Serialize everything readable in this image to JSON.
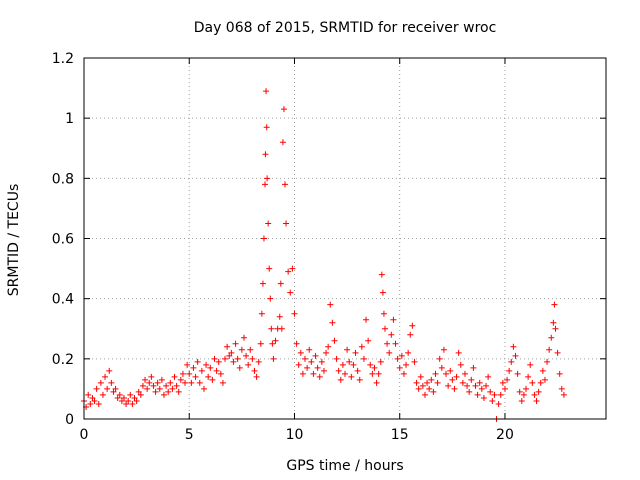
{
  "chart_data": {
    "type": "scatter",
    "title": "Day 068 of 2015, SRMTID for receiver wroc",
    "xlabel": "GPS time / hours",
    "ylabel": "SRMTID / TECUs",
    "xlim": [
      0,
      24.8
    ],
    "ylim": [
      0,
      1.2
    ],
    "x_ticks": [
      0,
      5,
      10,
      15,
      20
    ],
    "y_ticks": [
      0,
      0.2,
      0.4,
      0.6,
      0.8,
      1.0,
      1.2
    ],
    "x_tick_labels": [
      "0",
      "5",
      "10",
      "15",
      "20"
    ],
    "y_tick_labels": [
      "0",
      "0.2",
      "0.4",
      "0.6",
      "0.8",
      "1",
      "1.2"
    ],
    "grid": true,
    "marker": "+",
    "color": "#ff0000",
    "series": [
      {
        "name": "SRMTID",
        "points": [
          [
            0.0,
            0.06
          ],
          [
            0.1,
            0.04
          ],
          [
            0.2,
            0.08
          ],
          [
            0.3,
            0.05
          ],
          [
            0.4,
            0.07
          ],
          [
            0.5,
            0.06
          ],
          [
            0.6,
            0.1
          ],
          [
            0.7,
            0.05
          ],
          [
            0.8,
            0.12
          ],
          [
            0.9,
            0.08
          ],
          [
            1.0,
            0.14
          ],
          [
            1.1,
            0.1
          ],
          [
            1.2,
            0.16
          ],
          [
            1.3,
            0.12
          ],
          [
            1.4,
            0.09
          ],
          [
            1.5,
            0.1
          ],
          [
            1.6,
            0.07
          ],
          [
            1.7,
            0.08
          ],
          [
            1.8,
            0.06
          ],
          [
            1.9,
            0.07
          ],
          [
            2.0,
            0.05
          ],
          [
            2.1,
            0.06
          ],
          [
            2.2,
            0.08
          ],
          [
            2.3,
            0.05
          ],
          [
            2.4,
            0.07
          ],
          [
            2.5,
            0.06
          ],
          [
            2.6,
            0.09
          ],
          [
            2.7,
            0.08
          ],
          [
            2.8,
            0.11
          ],
          [
            2.9,
            0.13
          ],
          [
            3.0,
            0.1
          ],
          [
            3.1,
            0.12
          ],
          [
            3.2,
            0.14
          ],
          [
            3.3,
            0.11
          ],
          [
            3.4,
            0.09
          ],
          [
            3.5,
            0.12
          ],
          [
            3.6,
            0.1
          ],
          [
            3.7,
            0.13
          ],
          [
            3.8,
            0.08
          ],
          [
            3.9,
            0.11
          ],
          [
            4.0,
            0.09
          ],
          [
            4.1,
            0.12
          ],
          [
            4.2,
            0.1
          ],
          [
            4.3,
            0.14
          ],
          [
            4.4,
            0.11
          ],
          [
            4.5,
            0.09
          ],
          [
            4.6,
            0.13
          ],
          [
            4.7,
            0.15
          ],
          [
            4.8,
            0.12
          ],
          [
            4.9,
            0.18
          ],
          [
            5.0,
            0.15
          ],
          [
            5.1,
            0.12
          ],
          [
            5.2,
            0.17
          ],
          [
            5.3,
            0.14
          ],
          [
            5.4,
            0.19
          ],
          [
            5.5,
            0.12
          ],
          [
            5.6,
            0.16
          ],
          [
            5.7,
            0.1
          ],
          [
            5.8,
            0.18
          ],
          [
            5.9,
            0.14
          ],
          [
            6.0,
            0.17
          ],
          [
            6.1,
            0.13
          ],
          [
            6.2,
            0.2
          ],
          [
            6.3,
            0.16
          ],
          [
            6.4,
            0.19
          ],
          [
            6.5,
            0.15
          ],
          [
            6.6,
            0.12
          ],
          [
            6.7,
            0.2
          ],
          [
            6.8,
            0.24
          ],
          [
            6.9,
            0.21
          ],
          [
            7.0,
            0.22
          ],
          [
            7.1,
            0.19
          ],
          [
            7.2,
            0.25
          ],
          [
            7.3,
            0.2
          ],
          [
            7.4,
            0.17
          ],
          [
            7.5,
            0.23
          ],
          [
            7.6,
            0.27
          ],
          [
            7.7,
            0.21
          ],
          [
            7.8,
            0.18
          ],
          [
            7.9,
            0.23
          ],
          [
            8.0,
            0.2
          ],
          [
            8.1,
            0.16
          ],
          [
            8.2,
            0.14
          ],
          [
            8.3,
            0.19
          ],
          [
            8.4,
            0.25
          ],
          [
            8.45,
            0.35
          ],
          [
            8.5,
            0.45
          ],
          [
            8.55,
            0.6
          ],
          [
            8.6,
            0.78
          ],
          [
            8.62,
            0.88
          ],
          [
            8.65,
            1.09
          ],
          [
            8.68,
            0.97
          ],
          [
            8.7,
            0.8
          ],
          [
            8.75,
            0.65
          ],
          [
            8.8,
            0.5
          ],
          [
            8.85,
            0.4
          ],
          [
            8.9,
            0.3
          ],
          [
            8.95,
            0.25
          ],
          [
            9.0,
            0.2
          ],
          [
            9.1,
            0.26
          ],
          [
            9.2,
            0.3
          ],
          [
            9.3,
            0.34
          ],
          [
            9.35,
            0.45
          ],
          [
            9.4,
            0.3
          ],
          [
            9.45,
            0.92
          ],
          [
            9.5,
            1.03
          ],
          [
            9.55,
            0.78
          ],
          [
            9.6,
            0.65
          ],
          [
            9.7,
            0.49
          ],
          [
            9.8,
            0.42
          ],
          [
            9.9,
            0.5
          ],
          [
            10.0,
            0.35
          ],
          [
            10.1,
            0.25
          ],
          [
            10.2,
            0.18
          ],
          [
            10.3,
            0.22
          ],
          [
            10.4,
            0.15
          ],
          [
            10.5,
            0.2
          ],
          [
            10.6,
            0.17
          ],
          [
            10.7,
            0.23
          ],
          [
            10.8,
            0.19
          ],
          [
            10.9,
            0.15
          ],
          [
            11.0,
            0.21
          ],
          [
            11.1,
            0.17
          ],
          [
            11.2,
            0.14
          ],
          [
            11.3,
            0.19
          ],
          [
            11.4,
            0.16
          ],
          [
            11.5,
            0.22
          ],
          [
            11.6,
            0.24
          ],
          [
            11.7,
            0.38
          ],
          [
            11.8,
            0.32
          ],
          [
            11.9,
            0.26
          ],
          [
            12.0,
            0.2
          ],
          [
            12.1,
            0.16
          ],
          [
            12.2,
            0.13
          ],
          [
            12.3,
            0.18
          ],
          [
            12.4,
            0.15
          ],
          [
            12.5,
            0.23
          ],
          [
            12.6,
            0.19
          ],
          [
            12.7,
            0.14
          ],
          [
            12.8,
            0.18
          ],
          [
            12.9,
            0.22
          ],
          [
            13.0,
            0.16
          ],
          [
            13.1,
            0.13
          ],
          [
            13.2,
            0.24
          ],
          [
            13.3,
            0.2
          ],
          [
            13.4,
            0.33
          ],
          [
            13.5,
            0.26
          ],
          [
            13.6,
            0.18
          ],
          [
            13.7,
            0.15
          ],
          [
            13.8,
            0.17
          ],
          [
            13.9,
            0.12
          ],
          [
            14.0,
            0.15
          ],
          [
            14.1,
            0.19
          ],
          [
            14.15,
            0.48
          ],
          [
            14.2,
            0.42
          ],
          [
            14.25,
            0.35
          ],
          [
            14.3,
            0.3
          ],
          [
            14.4,
            0.25
          ],
          [
            14.5,
            0.22
          ],
          [
            14.6,
            0.28
          ],
          [
            14.7,
            0.33
          ],
          [
            14.8,
            0.25
          ],
          [
            14.9,
            0.2
          ],
          [
            15.0,
            0.17
          ],
          [
            15.1,
            0.21
          ],
          [
            15.2,
            0.15
          ],
          [
            15.3,
            0.18
          ],
          [
            15.4,
            0.22
          ],
          [
            15.5,
            0.28
          ],
          [
            15.6,
            0.31
          ],
          [
            15.7,
            0.19
          ],
          [
            15.8,
            0.12
          ],
          [
            15.9,
            0.1
          ],
          [
            16.0,
            0.14
          ],
          [
            16.1,
            0.11
          ],
          [
            16.2,
            0.08
          ],
          [
            16.3,
            0.12
          ],
          [
            16.4,
            0.1
          ],
          [
            16.5,
            0.13
          ],
          [
            16.6,
            0.09
          ],
          [
            16.7,
            0.15
          ],
          [
            16.8,
            0.12
          ],
          [
            16.9,
            0.2
          ],
          [
            17.0,
            0.17
          ],
          [
            17.1,
            0.23
          ],
          [
            17.2,
            0.15
          ],
          [
            17.3,
            0.11
          ],
          [
            17.4,
            0.16
          ],
          [
            17.5,
            0.13
          ],
          [
            17.6,
            0.1
          ],
          [
            17.7,
            0.14
          ],
          [
            17.8,
            0.22
          ],
          [
            17.9,
            0.18
          ],
          [
            18.0,
            0.12
          ],
          [
            18.1,
            0.15
          ],
          [
            18.2,
            0.11
          ],
          [
            18.3,
            0.09
          ],
          [
            18.4,
            0.13
          ],
          [
            18.5,
            0.17
          ],
          [
            18.6,
            0.11
          ],
          [
            18.7,
            0.08
          ],
          [
            18.8,
            0.12
          ],
          [
            18.9,
            0.1
          ],
          [
            19.0,
            0.07
          ],
          [
            19.1,
            0.11
          ],
          [
            19.2,
            0.14
          ],
          [
            19.3,
            0.09
          ],
          [
            19.4,
            0.06
          ],
          [
            19.5,
            0.08
          ],
          [
            19.6,
            0.0
          ],
          [
            19.7,
            0.05
          ],
          [
            19.8,
            0.08
          ],
          [
            19.9,
            0.12
          ],
          [
            20.0,
            0.1
          ],
          [
            20.1,
            0.13
          ],
          [
            20.2,
            0.16
          ],
          [
            20.3,
            0.19
          ],
          [
            20.4,
            0.24
          ],
          [
            20.5,
            0.21
          ],
          [
            20.6,
            0.15
          ],
          [
            20.7,
            0.09
          ],
          [
            20.8,
            0.06
          ],
          [
            20.9,
            0.08
          ],
          [
            21.0,
            0.1
          ],
          [
            21.1,
            0.14
          ],
          [
            21.2,
            0.18
          ],
          [
            21.3,
            0.12
          ],
          [
            21.4,
            0.08
          ],
          [
            21.5,
            0.06
          ],
          [
            21.6,
            0.09
          ],
          [
            21.7,
            0.12
          ],
          [
            21.8,
            0.16
          ],
          [
            21.9,
            0.13
          ],
          [
            22.0,
            0.19
          ],
          [
            22.1,
            0.23
          ],
          [
            22.2,
            0.27
          ],
          [
            22.3,
            0.32
          ],
          [
            22.35,
            0.38
          ],
          [
            22.4,
            0.3
          ],
          [
            22.5,
            0.22
          ],
          [
            22.6,
            0.15
          ],
          [
            22.7,
            0.1
          ],
          [
            22.8,
            0.08
          ]
        ]
      }
    ]
  }
}
